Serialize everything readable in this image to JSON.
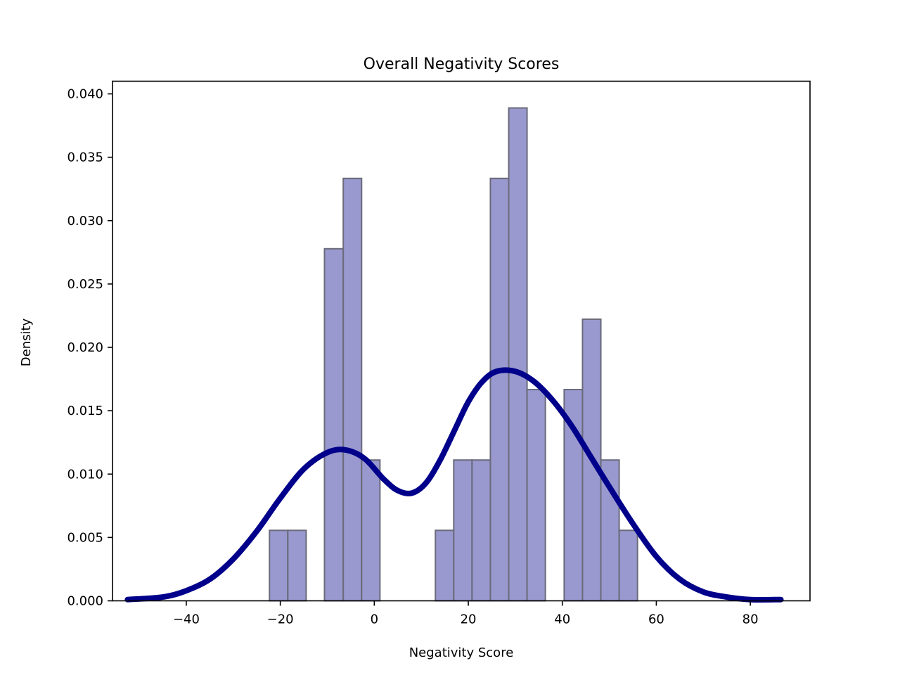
{
  "chart_data": {
    "type": "bar",
    "title": "Overall Negativity Scores",
    "xlabel": "Negativity Score",
    "ylabel": "Density",
    "xlim": [
      -55.7,
      92.7
    ],
    "ylim": [
      0,
      0.041
    ],
    "xticks": [
      -40,
      -20,
      0,
      20,
      40,
      60,
      80
    ],
    "xtick_labels": [
      "−40",
      "−20",
      "0",
      "20",
      "40",
      "60",
      "80"
    ],
    "yticks": [
      0,
      0.005,
      0.01,
      0.015,
      0.02,
      0.025,
      0.03,
      0.035,
      0.04
    ],
    "ytick_labels": [
      "0.000",
      "0.005",
      "0.010",
      "0.015",
      "0.020",
      "0.025",
      "0.030",
      "0.035",
      "0.040"
    ],
    "grid": false,
    "colors": {
      "bar_fill": "#9999cf",
      "bar_edge": "#6a6a7a",
      "kde_line": "#00008b"
    },
    "histogram": {
      "bin_edges": [
        -22.3,
        -18.4,
        -14.5,
        -10.6,
        -6.6,
        -2.7,
        1.2,
        5.1,
        9.1,
        13.0,
        16.9,
        20.8,
        24.7,
        28.6,
        32.5,
        36.4,
        40.4,
        44.3,
        48.2,
        52.1,
        56.0
      ],
      "values": [
        0.00556,
        0.00556,
        0,
        0.02778,
        0.03333,
        0.01111,
        0,
        0,
        0,
        0.00556,
        0.01111,
        0.01111,
        0.03333,
        0.03889,
        0.01667,
        0,
        0.01667,
        0.02222,
        0.01111,
        0.00556
      ]
    },
    "kde": {
      "x": [
        -52.5,
        -45,
        -40,
        -35,
        -30,
        -25,
        -20,
        -15,
        -10,
        -6,
        -2,
        2,
        5,
        8,
        11,
        14,
        17,
        20,
        23,
        26,
        30,
        34,
        38,
        42,
        46,
        50,
        55,
        60,
        65,
        70,
        75,
        80,
        86.5
      ],
      "y": [
        0.0001,
        0.0003,
        0.0008,
        0.0017,
        0.0033,
        0.0055,
        0.0081,
        0.0104,
        0.0117,
        0.0119,
        0.0112,
        0.0096,
        0.0087,
        0.0085,
        0.0093,
        0.0111,
        0.0134,
        0.0157,
        0.0173,
        0.0181,
        0.0181,
        0.0173,
        0.0158,
        0.0138,
        0.0114,
        0.009,
        0.0061,
        0.0035,
        0.0017,
        0.0007,
        0.0003,
        0.0001,
        0.0001
      ]
    }
  }
}
